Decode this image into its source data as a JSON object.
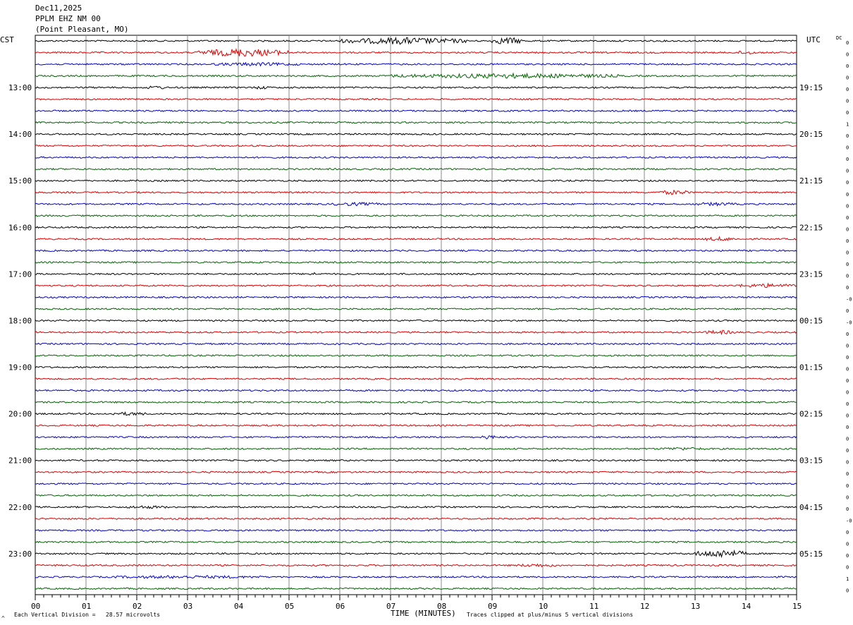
{
  "header": {
    "date": "Dec11,2025",
    "station": "PPLM EHZ NM 00",
    "location": "(Point Pleasant, MO)"
  },
  "left_zone_label": "CST",
  "right_zone_label": "UTC",
  "dc_label": "DC",
  "footer": {
    "scale_text": "Each Vertical Division =   28.57 microvolts",
    "clip_text": "Traces clipped at plus/minus 5 vertical divisions",
    "corner_mark": "^"
  },
  "chart_data": {
    "type": "helicorder",
    "title": "",
    "xlabel": "TIME (MINUTES)",
    "x_ticks": [
      "00",
      "01",
      "02",
      "03",
      "04",
      "05",
      "06",
      "07",
      "08",
      "09",
      "10",
      "11",
      "12",
      "13",
      "14",
      "15"
    ],
    "xlim": [
      0,
      15
    ],
    "row_count": 48,
    "colors": [
      "#000000",
      "#e00000",
      "#0000c8",
      "#006400"
    ],
    "left_hour_labels": [
      "13:00",
      "14:00",
      "15:00",
      "16:00",
      "17:00",
      "18:00",
      "19:00",
      "20:00",
      "21:00",
      "22:00",
      "23:00"
    ],
    "right_hour_labels": [
      "19:15",
      "20:15",
      "21:15",
      "22:15",
      "23:15",
      "00:15",
      "01:15",
      "02:15",
      "03:15",
      "04:15",
      "05:15"
    ],
    "hour_label_first_row": 4,
    "hour_label_row_step": 4,
    "dc_values": [
      "0",
      "0",
      "0",
      "0",
      "0",
      "0",
      "0",
      "1",
      "0",
      "0",
      "0",
      "0",
      "0",
      "0",
      "0",
      "0",
      "0",
      "0",
      "0",
      "0",
      "0",
      "0",
      "-0",
      "0",
      "-0",
      "0",
      "0",
      "0",
      "0",
      "0",
      "0",
      "0",
      "0",
      "0",
      "0",
      "0",
      "0",
      "0",
      "0",
      "0",
      "0",
      "-0",
      "0",
      "0",
      "0",
      "0",
      "1",
      "0"
    ],
    "events": [
      {
        "row": 0,
        "start_min": 6.0,
        "end_min": 8.5,
        "amplitude": 4.0
      },
      {
        "row": 0,
        "start_min": 9.0,
        "end_min": 9.6,
        "amplitude": 4.5
      },
      {
        "row": 1,
        "start_min": 3.2,
        "end_min": 5.0,
        "amplitude": 5.0
      },
      {
        "row": 1,
        "start_min": 13.8,
        "end_min": 14.2,
        "amplitude": 2.0
      },
      {
        "row": 2,
        "start_min": 3.5,
        "end_min": 5.2,
        "amplitude": 1.5
      },
      {
        "row": 3,
        "start_min": 7.0,
        "end_min": 11.5,
        "amplitude": 2.5
      },
      {
        "row": 4,
        "start_min": 2.2,
        "end_min": 2.6,
        "amplitude": 1.5
      },
      {
        "row": 4,
        "start_min": 4.3,
        "end_min": 4.6,
        "amplitude": 1.5
      },
      {
        "row": 13,
        "start_min": 12.3,
        "end_min": 12.9,
        "amplitude": 2.5
      },
      {
        "row": 14,
        "start_min": 5.8,
        "end_min": 6.8,
        "amplitude": 1.5
      },
      {
        "row": 14,
        "start_min": 13.0,
        "end_min": 13.8,
        "amplitude": 1.5
      },
      {
        "row": 17,
        "start_min": 13.2,
        "end_min": 13.8,
        "amplitude": 2.0
      },
      {
        "row": 20,
        "start_min": 5.3,
        "end_min": 5.6,
        "amplitude": 1.2
      },
      {
        "row": 21,
        "start_min": 13.8,
        "end_min": 15.0,
        "amplitude": 2.0
      },
      {
        "row": 25,
        "start_min": 13.2,
        "end_min": 13.8,
        "amplitude": 2.0
      },
      {
        "row": 32,
        "start_min": 1.5,
        "end_min": 2.2,
        "amplitude": 1.5
      },
      {
        "row": 34,
        "start_min": 8.8,
        "end_min": 9.1,
        "amplitude": 2.0
      },
      {
        "row": 35,
        "start_min": 12.3,
        "end_min": 13.2,
        "amplitude": 1.2
      },
      {
        "row": 40,
        "start_min": 1.8,
        "end_min": 2.6,
        "amplitude": 1.2
      },
      {
        "row": 44,
        "start_min": 13.0,
        "end_min": 14.0,
        "amplitude": 5.0
      },
      {
        "row": 45,
        "start_min": 9.5,
        "end_min": 10.3,
        "amplitude": 1.5
      },
      {
        "row": 46,
        "start_min": 1.5,
        "end_min": 4.5,
        "amplitude": 1.2
      }
    ]
  }
}
